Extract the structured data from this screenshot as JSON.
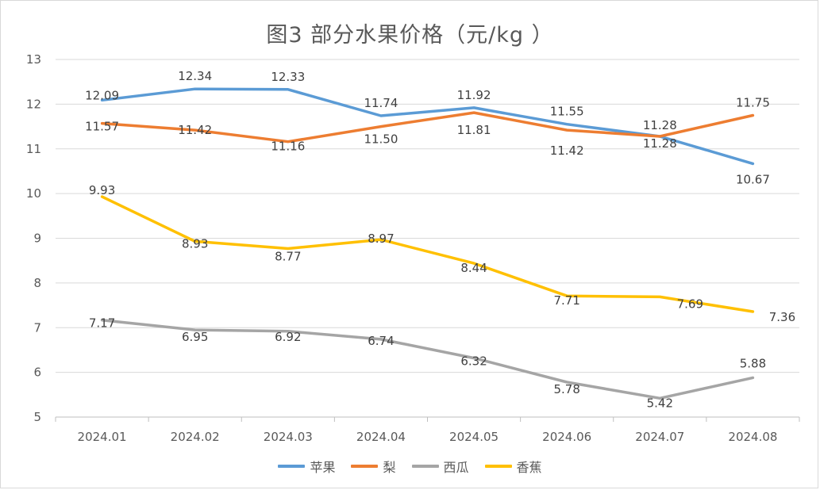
{
  "chart_data": {
    "type": "line",
    "title": "图3  部分水果价格（元/kg ）",
    "categories": [
      "2024.01",
      "2024.02",
      "2024.03",
      "2024.04",
      "2024.05",
      "2024.06",
      "2024.07",
      "2024.08"
    ],
    "ylim": [
      5,
      13
    ],
    "yticks": [
      "5",
      "6",
      "7",
      "8",
      "9",
      "10",
      "11",
      "12",
      "13"
    ],
    "grid": true,
    "legend_position": "bottom",
    "series": [
      {
        "name": "苹果",
        "color": "#5b9bd5",
        "values": [
          12.09,
          12.34,
          12.33,
          11.74,
          11.92,
          11.55,
          11.28,
          10.67
        ],
        "labels": [
          "12.09",
          "12.34",
          "12.33",
          "11.74",
          "11.92",
          "11.55",
          "11.28",
          "10.67"
        ]
      },
      {
        "name": "梨",
        "color": "#ed7d31",
        "values": [
          11.57,
          11.42,
          11.16,
          11.5,
          11.81,
          11.42,
          11.28,
          11.75
        ],
        "labels": [
          "11.57",
          "11.42",
          "11.16",
          "11.50",
          "11.81",
          "11.42",
          "11.28",
          "11.75"
        ]
      },
      {
        "name": "西瓜",
        "color": "#a5a5a5",
        "values": [
          7.17,
          6.95,
          6.92,
          6.74,
          6.32,
          5.78,
          5.42,
          5.88
        ],
        "labels": [
          "7.17",
          "6.95",
          "6.92",
          "6.74",
          "6.32",
          "5.78",
          "5.42",
          "5.88"
        ]
      },
      {
        "name": "香蕉",
        "color": "#ffc000",
        "values": [
          9.93,
          8.93,
          8.77,
          8.97,
          8.44,
          7.71,
          7.69,
          7.36
        ],
        "labels": [
          "9.93",
          "8.93",
          "8.77",
          "8.97",
          "8.44",
          "7.71",
          "7.69",
          "7.36"
        ]
      }
    ]
  }
}
